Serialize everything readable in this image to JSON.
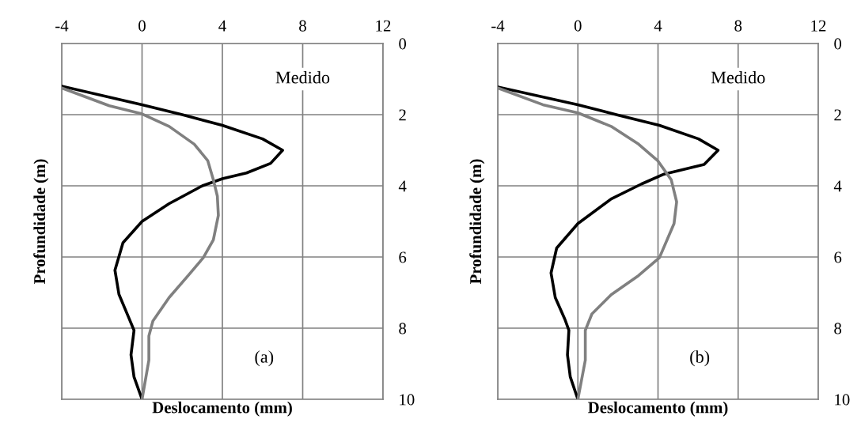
{
  "chart_data": [
    {
      "type": "line",
      "xlabel": "Deslocamento (mm)",
      "ylabel": "Profundidade (m)",
      "annotations": [
        "(a)"
      ],
      "xlim": [
        -4,
        12
      ],
      "xticks": [
        -4,
        0,
        4,
        8,
        12
      ],
      "ylim": [
        10,
        0
      ],
      "yticks": [
        0,
        2,
        4,
        6,
        8,
        10
      ],
      "grid": true,
      "series": [
        {
          "name": "Medido",
          "color": "#000000",
          "x": [
            -4,
            0,
            2.0,
            4,
            6,
            7.0,
            6.4,
            5.2,
            4.0,
            3.0,
            1.35,
            0,
            -0.95,
            -1.35,
            -1.15,
            -0.68,
            -0.4,
            -0.55,
            -0.4,
            0
          ],
          "values": [
            1.2,
            1.72,
            2.0,
            2.3,
            2.68,
            3.0,
            3.37,
            3.64,
            3.8,
            4.0,
            4.5,
            5.0,
            5.6,
            6.37,
            7.05,
            7.68,
            8.06,
            8.75,
            9.37,
            10
          ]
        },
        {
          "color": "#808080",
          "x": [
            -4,
            -1.63,
            0,
            1.35,
            2.6,
            3.27,
            3.55,
            3.75,
            3.8,
            3.55,
            3.05,
            2.3,
            1.35,
            0.54,
            0.34,
            0.34,
            0
          ],
          "values": [
            1.25,
            1.75,
            1.98,
            2.33,
            2.83,
            3.29,
            3.83,
            4.29,
            4.83,
            5.52,
            6.02,
            6.52,
            7.14,
            7.8,
            8.22,
            8.9,
            10
          ]
        }
      ]
    },
    {
      "type": "line",
      "xlabel": "Deslocamento (mm)",
      "ylabel": "Profundidade (m)",
      "annotations": [
        "(b)"
      ],
      "xlim": [
        -4,
        12
      ],
      "xticks": [
        -4,
        0,
        4,
        8,
        12
      ],
      "ylim": [
        10,
        0
      ],
      "yticks": [
        0,
        2,
        4,
        6,
        8,
        10
      ],
      "grid": true,
      "series": [
        {
          "name": "Medido",
          "color": "#000000",
          "x": [
            -4,
            0,
            2.07,
            4.07,
            6.02,
            7.0,
            6.3,
            4.3,
            3.17,
            1.66,
            0,
            -1.06,
            -1.34,
            -1.13,
            -0.65,
            -0.45,
            -0.52,
            -0.38,
            0
          ],
          "values": [
            1.22,
            1.72,
            2.02,
            2.3,
            2.68,
            3.0,
            3.4,
            3.67,
            3.95,
            4.37,
            5.06,
            5.75,
            6.45,
            7.14,
            7.75,
            8.06,
            8.75,
            9.37,
            10
          ]
        },
        {
          "color": "#808080",
          "x": [
            -4,
            -1.75,
            0,
            1.66,
            3.03,
            3.98,
            4.66,
            4.93,
            4.8,
            4.07,
            3.03,
            1.66,
            0.7,
            0.37,
            0.37,
            0
          ],
          "values": [
            1.25,
            1.72,
            1.95,
            2.33,
            2.83,
            3.29,
            3.83,
            4.45,
            5.06,
            6.02,
            6.52,
            7.06,
            7.6,
            8.06,
            8.9,
            10
          ]
        }
      ]
    }
  ]
}
